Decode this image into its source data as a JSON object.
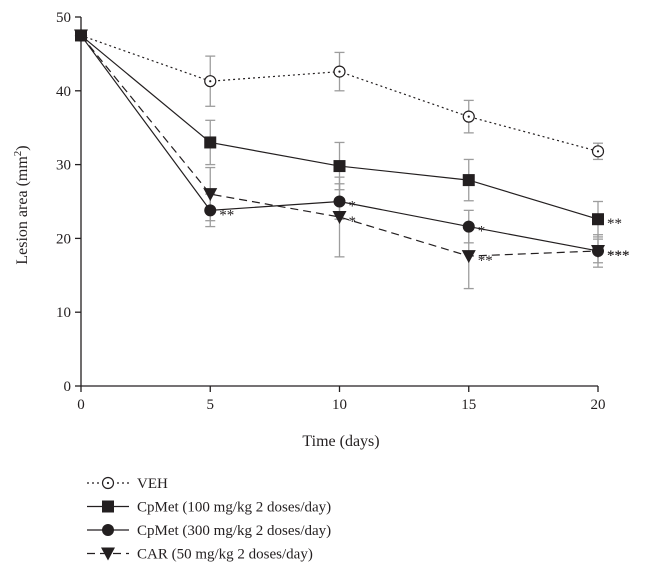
{
  "chart_data": {
    "type": "line",
    "xlabel": "Time (days)",
    "ylabel_text": "Lesion area (mm",
    "ylabel_sup": "2",
    "ylabel_close": ")",
    "xlim": [
      0,
      20
    ],
    "ylim": [
      0,
      50
    ],
    "x_ticks": [
      0,
      5,
      10,
      15,
      20
    ],
    "y_ticks": [
      0,
      10,
      20,
      30,
      40,
      50
    ],
    "grid": false,
    "legend_position": "bottom",
    "series": [
      {
        "name": "VEH",
        "marker": "open-circle",
        "line": "dotted",
        "x": [
          0,
          5,
          10,
          15,
          20
        ],
        "y": [
          47.5,
          41.3,
          42.6,
          36.5,
          31.8
        ],
        "err": [
          0,
          3.4,
          2.6,
          2.2,
          1.1
        ],
        "sig": [
          "",
          "",
          "",
          "",
          ""
        ]
      },
      {
        "name": "CpMet (100 mg/kg 2 doses/day)",
        "marker": "filled-square",
        "line": "solid",
        "x": [
          0,
          5,
          10,
          15,
          20
        ],
        "y": [
          47.5,
          33.0,
          29.8,
          27.9,
          22.6
        ],
        "err": [
          0,
          3.0,
          3.2,
          2.8,
          2.4
        ],
        "sig": [
          "",
          "",
          "",
          "",
          "**"
        ]
      },
      {
        "name": "CpMet (300 mg/kg 2 doses/day)",
        "marker": "filled-circle",
        "line": "solid",
        "x": [
          0,
          5,
          10,
          15,
          20
        ],
        "y": [
          47.5,
          23.8,
          25.0,
          21.6,
          18.3
        ],
        "err": [
          0,
          2.2,
          2.4,
          2.2,
          2.2
        ],
        "sig": [
          "",
          "**",
          "*",
          "*",
          "***"
        ]
      },
      {
        "name": "CAR (50 mg/kg 2 doses/day)",
        "marker": "filled-triangle-down",
        "line": "dashed",
        "x": [
          0,
          5,
          10,
          15,
          20
        ],
        "y": [
          47.5,
          26.0,
          22.9,
          17.6,
          18.3
        ],
        "err": [
          0,
          3.6,
          5.4,
          4.4,
          1.6
        ],
        "sig": [
          "",
          "",
          "*",
          "**",
          "***"
        ]
      }
    ]
  }
}
